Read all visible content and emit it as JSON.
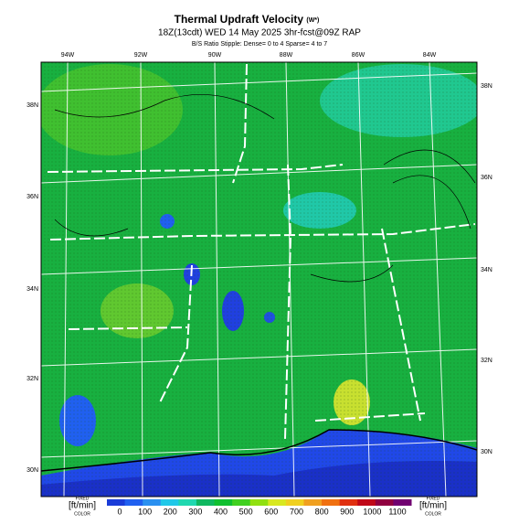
{
  "header": {
    "title": "Thermal Updraft Velocity",
    "title_unit": "(W*)",
    "subtitle": "18Z(13cdt) WED 14 May 2025 3hr-fcst@09Z RAP",
    "stipple_note": "B/S Ratio Stipple: Dense= 0 to 4 Sparse= 4 to 7"
  },
  "map": {
    "top_labels": [
      "94W",
      "92W",
      "90W",
      "88W",
      "86W",
      "84W"
    ],
    "left_labels": [
      "38N",
      "36N",
      "34N",
      "32N",
      "30N"
    ],
    "right_labels": [
      "38N",
      "36N",
      "34N",
      "32N",
      "30N"
    ]
  },
  "legend": {
    "left_label": [
      "FIXED",
      "[ft/min]",
      "COLOR"
    ],
    "right_label": [
      "FIXED",
      "[ft/min]",
      "COLOR"
    ],
    "ticks": [
      0,
      100,
      200,
      300,
      400,
      500,
      600,
      700,
      800,
      900,
      1000,
      1100
    ],
    "colors": [
      "#1a3cd8",
      "#2060f0",
      "#2a90f0",
      "#20c8e8",
      "#20d8b0",
      "#10b860",
      "#10c030",
      "#40d020",
      "#90e010",
      "#d8e820",
      "#f0d020",
      "#f0a020",
      "#f07010",
      "#e03010",
      "#c00818",
      "#900040",
      "#700070"
    ]
  }
}
